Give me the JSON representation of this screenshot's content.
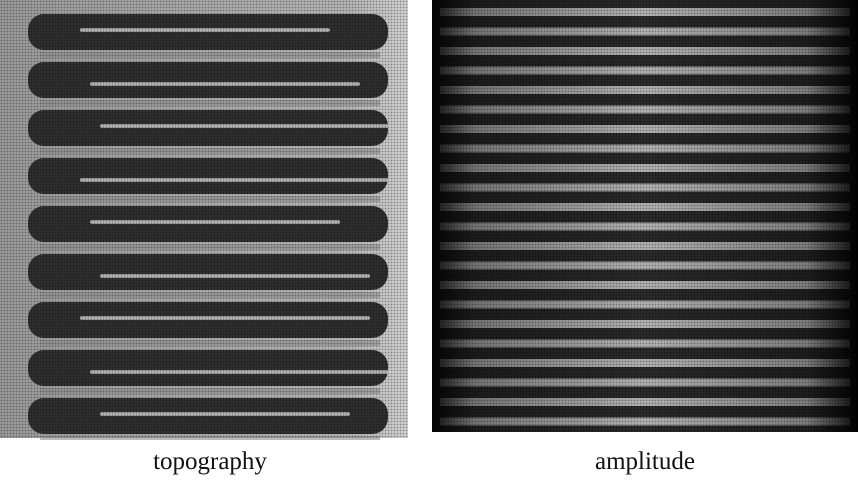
{
  "figure": {
    "panels": [
      {
        "label": "topography"
      },
      {
        "label": "amplitude"
      }
    ]
  }
}
